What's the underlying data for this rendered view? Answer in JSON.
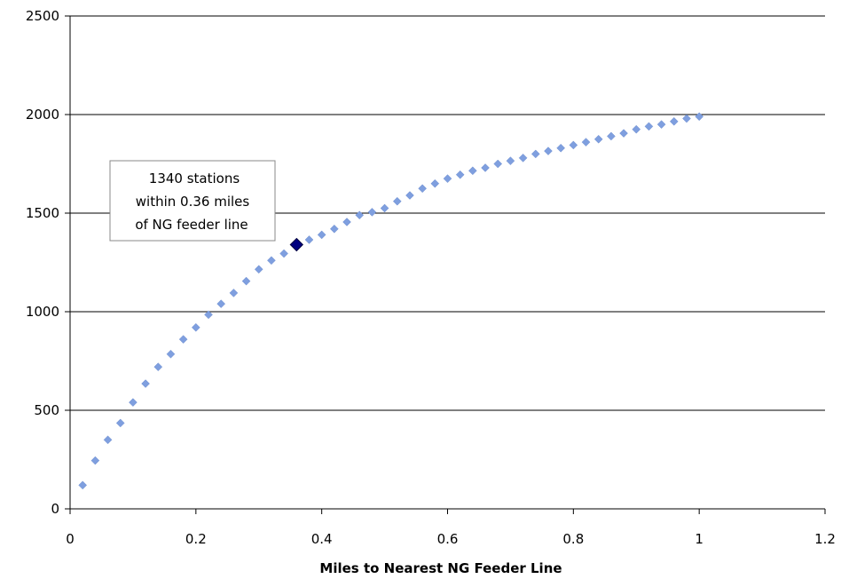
{
  "chart_data": {
    "type": "scatter",
    "title": "",
    "xlabel": "Miles to Nearest NG Feeder Line",
    "ylabel": "",
    "xlim": [
      0,
      1.2
    ],
    "ylim": [
      0,
      2500
    ],
    "x_ticks": [
      "0",
      "0.2",
      "0.4",
      "0.6",
      "0.8",
      "1",
      "1.2"
    ],
    "y_ticks": [
      "0",
      "500",
      "1000",
      "1500",
      "2000",
      "2500"
    ],
    "grid": "horizontal",
    "legend": "none",
    "colors": {
      "series": "#7f9fdf",
      "highlight": "#000080",
      "grid": "#000000"
    },
    "series": [
      {
        "x": [
          0.02,
          0.04,
          0.06,
          0.08,
          0.1,
          0.12,
          0.14,
          0.16,
          0.18,
          0.2,
          0.22,
          0.24,
          0.26,
          0.28,
          0.3,
          0.32,
          0.34,
          0.38,
          0.4,
          0.42,
          0.44,
          0.46,
          0.48,
          0.5,
          0.52,
          0.54,
          0.56,
          0.58,
          0.6,
          0.62,
          0.64,
          0.66,
          0.68,
          0.7,
          0.72,
          0.74,
          0.76,
          0.78,
          0.8,
          0.82,
          0.84,
          0.86,
          0.88,
          0.9,
          0.92,
          0.94,
          0.96,
          0.98,
          1.0
        ],
        "y": [
          120,
          245,
          350,
          435,
          540,
          635,
          720,
          785,
          860,
          920,
          985,
          1040,
          1095,
          1155,
          1215,
          1260,
          1295,
          1365,
          1390,
          1420,
          1455,
          1490,
          1505,
          1525,
          1560,
          1590,
          1625,
          1650,
          1675,
          1695,
          1715,
          1730,
          1750,
          1765,
          1780,
          1800,
          1815,
          1830,
          1845,
          1860,
          1875,
          1890,
          1905,
          1925,
          1940,
          1950,
          1965,
          1980,
          1990
        ]
      }
    ],
    "highlight_point": {
      "x": 0.36,
      "y": 1340
    },
    "annotation": [
      "1340 stations",
      "within 0.36 miles",
      "of NG feeder line"
    ]
  }
}
